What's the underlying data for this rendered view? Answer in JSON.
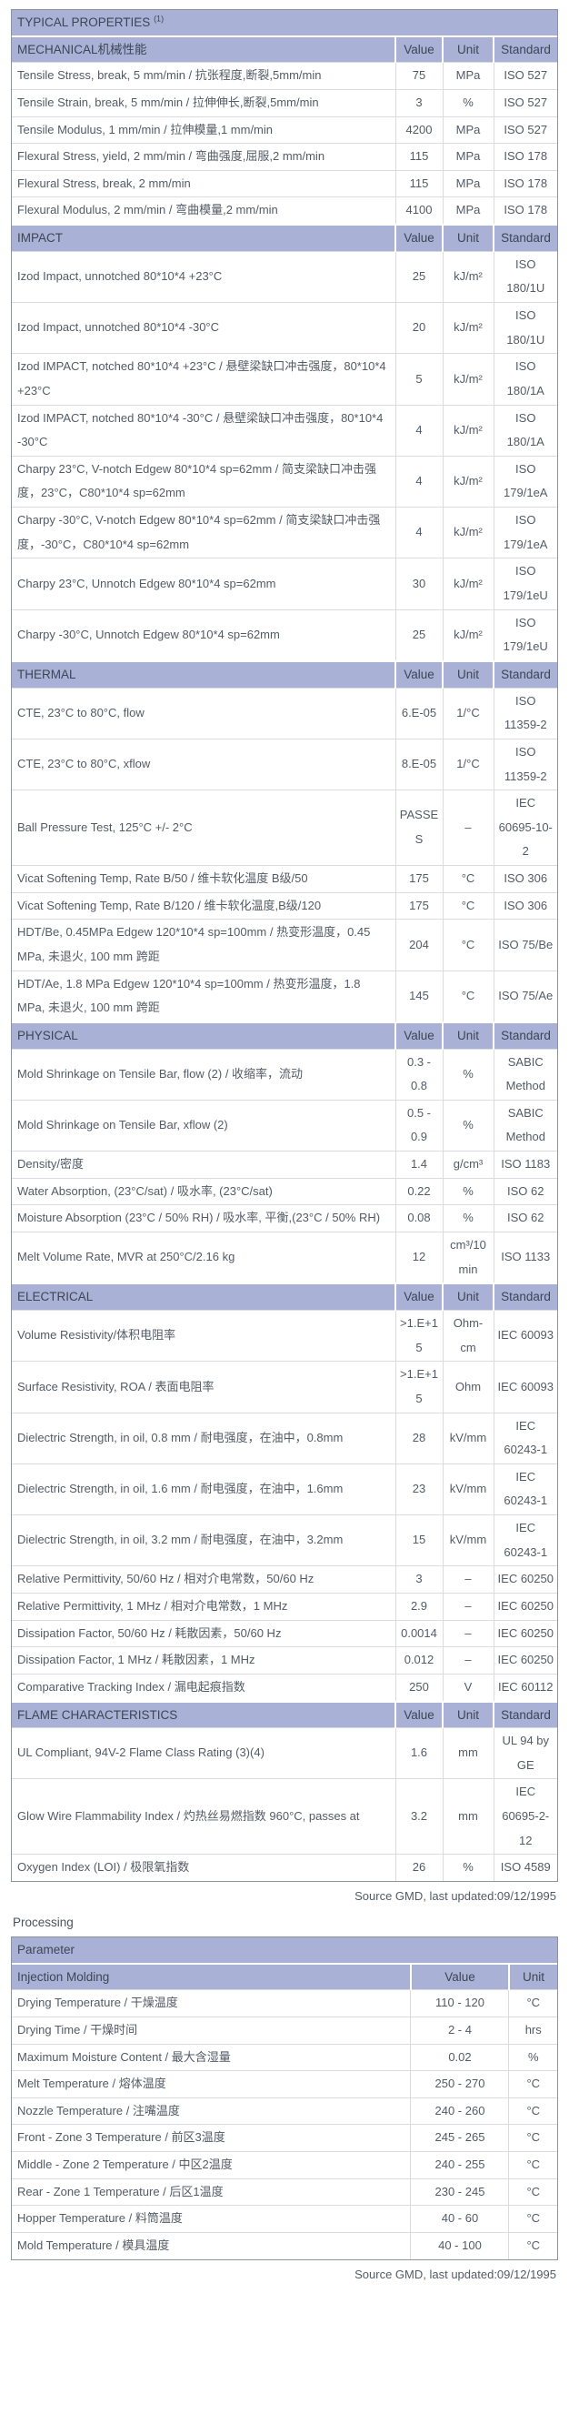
{
  "typical_properties": {
    "title": "TYPICAL PROPERTIES",
    "title_note": "(1)",
    "col_headers": {
      "value": "Value",
      "unit": "Unit",
      "standard": "Standard"
    },
    "sections": [
      {
        "name": "MECHANICAL机械性能",
        "rows": [
          {
            "property": "Tensile Stress, break, 5 mm/min / 抗张程度,断裂,5mm/min",
            "value": "75",
            "unit": "MPa",
            "standard": "ISO 527"
          },
          {
            "property": "Tensile Strain, break, 5 mm/min / 拉伸伸长,断裂,5mm/min",
            "value": "3",
            "unit": "%",
            "standard": "ISO 527"
          },
          {
            "property": "Tensile Modulus, 1 mm/min / 拉伸模量,1 mm/min",
            "value": "4200",
            "unit": "MPa",
            "standard": "ISO 527"
          },
          {
            "property": "Flexural Stress, yield, 2 mm/min / 弯曲强度,屈服,2 mm/min",
            "value": "115",
            "unit": "MPa",
            "standard": "ISO 178"
          },
          {
            "property": "Flexural Stress, break, 2 mm/min",
            "value": "115",
            "unit": "MPa",
            "standard": "ISO 178"
          },
          {
            "property": "Flexural Modulus, 2 mm/min / 弯曲模量,2 mm/min",
            "value": "4100",
            "unit": "MPa",
            "standard": "ISO 178"
          }
        ]
      },
      {
        "name": "IMPACT",
        "rows": [
          {
            "property": "Izod Impact, unnotched 80*10*4 +23°C",
            "value": "25",
            "unit": "kJ/m²",
            "standard": "ISO 180/1U"
          },
          {
            "property": "Izod Impact, unnotched 80*10*4 -30°C",
            "value": "20",
            "unit": "kJ/m²",
            "standard": "ISO 180/1U"
          },
          {
            "property": "Izod IMPACT, notched 80*10*4 +23°C / 悬壁梁缺口冲击强度，80*10*4 +23°C",
            "value": "5",
            "unit": "kJ/m²",
            "standard": "ISO 180/1A"
          },
          {
            "property": "Izod IMPACT, notched 80*10*4 -30°C / 悬壁梁缺口冲击强度，80*10*4 -30°C",
            "value": "4",
            "unit": "kJ/m²",
            "standard": "ISO 180/1A"
          },
          {
            "property": "Charpy 23°C, V-notch Edgew 80*10*4 sp=62mm / 简支梁缺口冲击强度，23°C，C80*10*4 sp=62mm",
            "value": "4",
            "unit": "kJ/m²",
            "standard": "ISO 179/1eA"
          },
          {
            "property": "Charpy -30°C, V-notch Edgew 80*10*4 sp=62mm / 简支梁缺口冲击强度，-30°C，C80*10*4 sp=62mm",
            "value": "4",
            "unit": "kJ/m²",
            "standard": "ISO 179/1eA"
          },
          {
            "property": "Charpy 23°C, Unnotch Edgew 80*10*4 sp=62mm",
            "value": "30",
            "unit": "kJ/m²",
            "standard": "ISO 179/1eU"
          },
          {
            "property": "Charpy -30°C, Unnotch Edgew 80*10*4 sp=62mm",
            "value": "25",
            "unit": "kJ/m²",
            "standard": "ISO 179/1eU"
          }
        ]
      },
      {
        "name": "THERMAL",
        "rows": [
          {
            "property": "CTE, 23°C to 80°C, flow",
            "value": "6.E-05",
            "unit": "1/°C",
            "standard": "ISO 11359-2"
          },
          {
            "property": "CTE, 23°C to 80°C, xflow",
            "value": "8.E-05",
            "unit": "1/°C",
            "standard": "ISO 11359-2"
          },
          {
            "property": "Ball Pressure Test, 125°C +/- 2°C",
            "value": "PASSES",
            "unit": "–",
            "standard": "IEC 60695-10-2"
          },
          {
            "property": "Vicat Softening Temp, Rate B/50 / 维卡软化温度 B级/50",
            "value": "175",
            "unit": "°C",
            "standard": "ISO 306"
          },
          {
            "property": "Vicat Softening Temp, Rate B/120 / 维卡软化温度,B级/120",
            "value": "175",
            "unit": "°C",
            "standard": "ISO 306"
          },
          {
            "property": "HDT/Be, 0.45MPa Edgew 120*10*4 sp=100mm / 热变形温度，0.45 MPa, 未退火, 100 mm 跨距",
            "value": "204",
            "unit": "°C",
            "standard": "ISO 75/Be"
          },
          {
            "property": "HDT/Ae, 1.8 MPa Edgew 120*10*4 sp=100mm / 热变形温度，1.8 MPa, 未退火, 100 mm 跨距",
            "value": "145",
            "unit": "°C",
            "standard": "ISO 75/Ae"
          }
        ]
      },
      {
        "name": "PHYSICAL",
        "rows": [
          {
            "property": "Mold Shrinkage on Tensile Bar, flow (2) / 收缩率，流动",
            "value": "0.3 - 0.8",
            "unit": "%",
            "standard": "SABIC Method"
          },
          {
            "property": "Mold Shrinkage on Tensile Bar, xflow (2)",
            "value": "0.5 - 0.9",
            "unit": "%",
            "standard": "SABIC Method"
          },
          {
            "property": "Density/密度",
            "value": "1.4",
            "unit": "g/cm³",
            "standard": "ISO 1183"
          },
          {
            "property": "Water Absorption, (23°C/sat) / 吸水率, (23°C/sat)",
            "value": "0.22",
            "unit": "%",
            "standard": "ISO 62"
          },
          {
            "property": "Moisture Absorption (23°C / 50% RH) / 吸水率, 平衡,(23°C / 50% RH)",
            "value": "0.08",
            "unit": "%",
            "standard": "ISO 62"
          },
          {
            "property": "Melt Volume Rate, MVR at 250°C/2.16 kg",
            "value": "12",
            "unit": "cm³/10 min",
            "standard": "ISO 1133"
          }
        ]
      },
      {
        "name": "ELECTRICAL",
        "rows": [
          {
            "property": "Volume Resistivity/体积电阻率",
            "value": ">1.E+15",
            "unit": "Ohm-cm",
            "standard": "IEC 60093"
          },
          {
            "property": "Surface Resistivity, ROA / 表面电阻率",
            "value": ">1.E+15",
            "unit": "Ohm",
            "standard": "IEC 60093"
          },
          {
            "property": "Dielectric Strength, in oil, 0.8 mm / 耐电强度，在油中，0.8mm",
            "value": "28",
            "unit": "kV/mm",
            "standard": "IEC 60243-1"
          },
          {
            "property": "Dielectric Strength, in oil, 1.6 mm / 耐电强度，在油中，1.6mm",
            "value": "23",
            "unit": "kV/mm",
            "standard": "IEC 60243-1"
          },
          {
            "property": "Dielectric Strength, in oil, 3.2 mm / 耐电强度，在油中，3.2mm",
            "value": "15",
            "unit": "kV/mm",
            "standard": "IEC 60243-1"
          },
          {
            "property": "Relative Permittivity, 50/60 Hz / 相对介电常数，50/60 Hz",
            "value": "3",
            "unit": "–",
            "standard": "IEC 60250"
          },
          {
            "property": "Relative Permittivity, 1 MHz / 相对介电常数，1 MHz",
            "value": "2.9",
            "unit": "–",
            "standard": "IEC 60250"
          },
          {
            "property": "Dissipation Factor, 50/60 Hz / 耗散因素，50/60 Hz",
            "value": "0.0014",
            "unit": "–",
            "standard": "IEC 60250"
          },
          {
            "property": "Dissipation Factor, 1 MHz / 耗散因素，1 MHz",
            "value": "0.012",
            "unit": "–",
            "standard": "IEC 60250"
          },
          {
            "property": "Comparative Tracking Index / 漏电起痕指数",
            "value": "250",
            "unit": "V",
            "standard": "IEC 60112"
          }
        ]
      },
      {
        "name": "FLAME CHARACTERISTICS",
        "rows": [
          {
            "property": "UL Compliant, 94V-2 Flame Class Rating (3)(4)",
            "value": "1.6",
            "unit": "mm",
            "standard": "UL 94 by GE"
          },
          {
            "property": "Glow Wire Flammability Index / 灼热丝易燃指数 960°C, passes at",
            "value": "3.2",
            "unit": "mm",
            "standard": "IEC 60695-2-12"
          },
          {
            "property": "Oxygen Index (LOI) / 极限氧指数",
            "value": "26",
            "unit": "%",
            "standard": "ISO 4589"
          }
        ]
      }
    ],
    "source_note": "Source GMD, last updated:09/12/1995"
  },
  "processing": {
    "heading": "Processing",
    "param_header": "Parameter",
    "subheader": {
      "name": "Injection Molding",
      "value": "Value",
      "unit": "Unit"
    },
    "rows": [
      {
        "parameter": "Drying Temperature / 干燥温度",
        "value": "110 - 120",
        "unit": "°C"
      },
      {
        "parameter": "Drying Time / 干燥时间",
        "value": "2 - 4",
        "unit": "hrs"
      },
      {
        "parameter": "Maximum Moisture Content / 最大含湿量",
        "value": "0.02",
        "unit": "%"
      },
      {
        "parameter": "Melt Temperature / 熔体温度",
        "value": "250 - 270",
        "unit": "°C"
      },
      {
        "parameter": "Nozzle Temperature / 注嘴温度",
        "value": "240 - 260",
        "unit": "°C"
      },
      {
        "parameter": "Front - Zone 3 Temperature / 前区3温度",
        "value": "245 - 265",
        "unit": "°C"
      },
      {
        "parameter": "Middle - Zone 2 Temperature / 中区2温度",
        "value": "240 - 255",
        "unit": "°C"
      },
      {
        "parameter": "Rear - Zone 1 Temperature / 后区1温度",
        "value": "230 - 245",
        "unit": "°C"
      },
      {
        "parameter": "Hopper Temperature / 料筒温度",
        "value": "40 - 60",
        "unit": "°C"
      },
      {
        "parameter": "Mold Temperature / 模具温度",
        "value": "40 - 100",
        "unit": "°C"
      }
    ],
    "source_note": "Source GMD, last updated:09/12/1995"
  },
  "colors": {
    "header_bg": "#a9b2d6",
    "header_text": "#3e4554",
    "body_text": "#545b66",
    "grid_line": "#d9dbe0",
    "outer_border": "#8d94a0"
  }
}
